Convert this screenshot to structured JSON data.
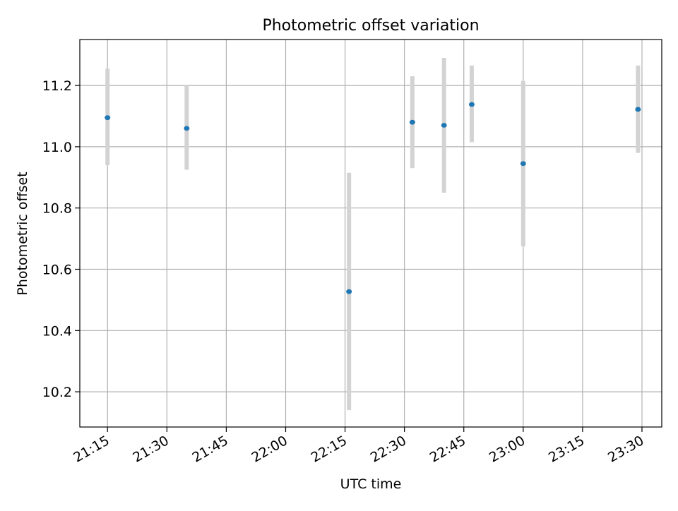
{
  "chart_data": {
    "type": "scatter",
    "title": "Photometric offset variation",
    "xlabel": "UTC time",
    "ylabel": "Photometric offset",
    "x_tick_labels": [
      "21:15",
      "21:30",
      "21:45",
      "22:00",
      "22:15",
      "22:30",
      "22:45",
      "23:00",
      "23:15",
      "23:30"
    ],
    "x_ticks": [
      "21:15",
      "21:30",
      "21:45",
      "22:00",
      "22:15",
      "22:30",
      "22:45",
      "23:00",
      "23:15",
      "23:30"
    ],
    "y_tick_labels": [
      "10.2",
      "10.4",
      "10.6",
      "10.8",
      "11.0",
      "11.2"
    ],
    "y_ticks": [
      10.2,
      10.4,
      10.6,
      10.8,
      11.0,
      11.2
    ],
    "xlim": [
      "21:08",
      "23:35"
    ],
    "ylim": [
      10.085,
      11.35
    ],
    "grid": true,
    "point_color": "#1f77b4",
    "errorbar_color": "#d3d3d3",
    "points": [
      {
        "x": "21:15",
        "y": 11.095,
        "yerr_low": 10.94,
        "yerr_high": 11.255
      },
      {
        "x": "21:35",
        "y": 11.06,
        "yerr_low": 10.925,
        "yerr_high": 11.2
      },
      {
        "x": "22:16",
        "y": 10.527,
        "yerr_low": 10.14,
        "yerr_high": 10.915
      },
      {
        "x": "22:32",
        "y": 11.08,
        "yerr_low": 10.93,
        "yerr_high": 11.23
      },
      {
        "x": "22:40",
        "y": 11.07,
        "yerr_low": 10.85,
        "yerr_high": 11.29
      },
      {
        "x": "22:47",
        "y": 11.138,
        "yerr_low": 11.015,
        "yerr_high": 11.265
      },
      {
        "x": "23:00",
        "y": 10.945,
        "yerr_low": 10.675,
        "yerr_high": 11.215
      },
      {
        "x": "23:29",
        "y": 11.122,
        "yerr_low": 10.98,
        "yerr_high": 11.265
      }
    ]
  }
}
